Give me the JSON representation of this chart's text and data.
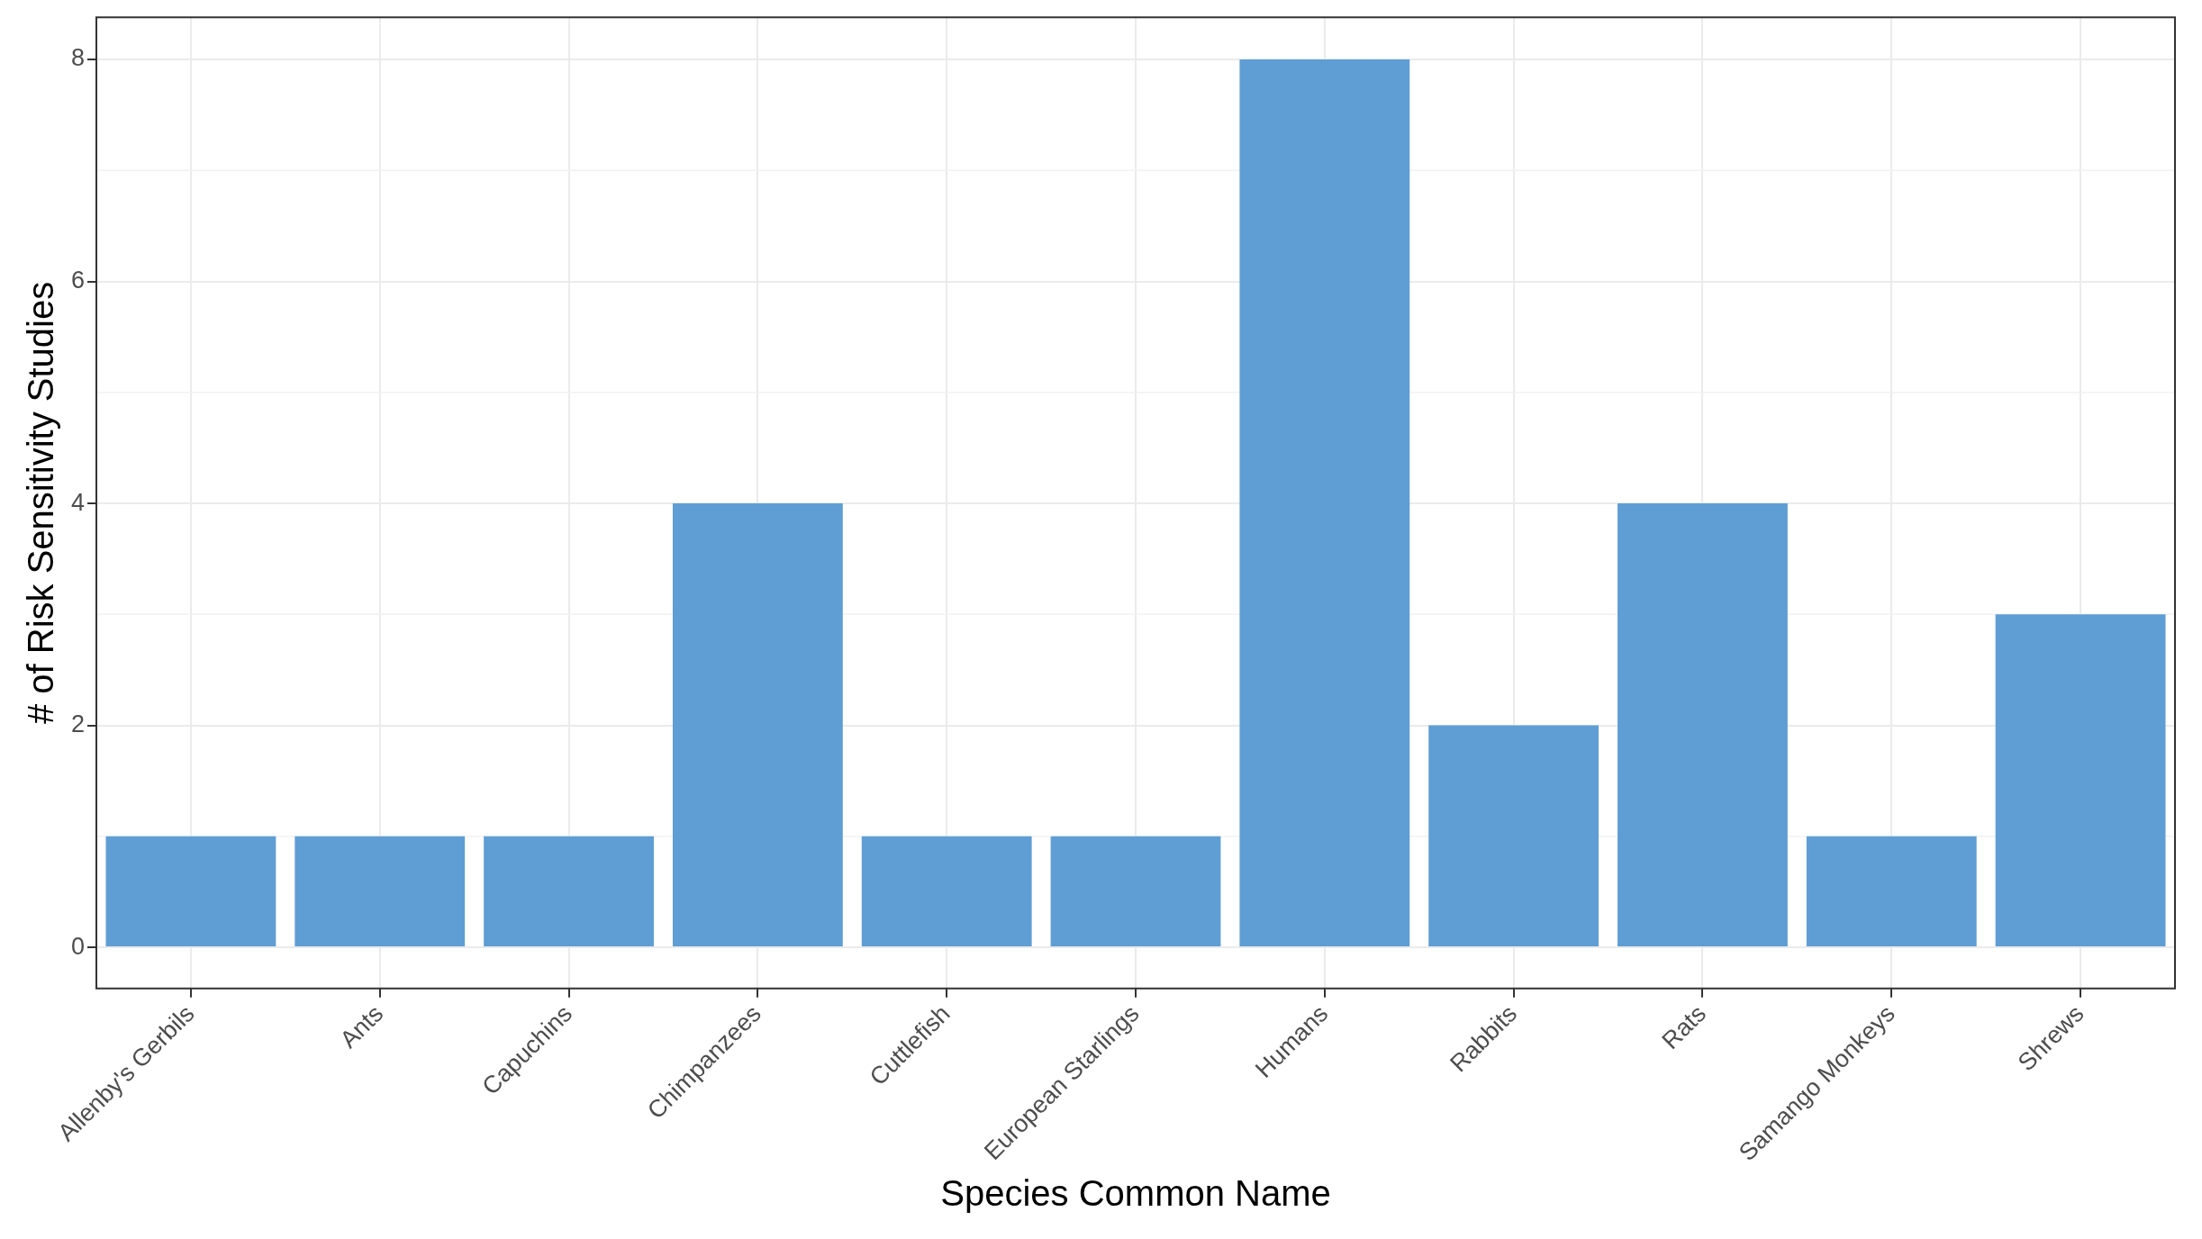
{
  "chart_data": {
    "type": "bar",
    "xlabel": "Species Common Name",
    "ylabel": "# of Risk Sensitivity Studies",
    "categories": [
      "Allenby's Gerbils",
      "Ants",
      "Capuchins",
      "Chimpanzees",
      "Cuttlefish",
      "European Starlings",
      "Humans",
      "Rabbits",
      "Rats",
      "Samango Monkeys",
      "Shrews"
    ],
    "values": [
      1,
      1,
      1,
      4,
      1,
      1,
      8,
      2,
      4,
      1,
      3
    ],
    "color": "#5f9ed4",
    "ylim": [
      -0.37,
      8.38
    ],
    "yticks": [
      0,
      2,
      4,
      6,
      8
    ],
    "grid": true
  }
}
